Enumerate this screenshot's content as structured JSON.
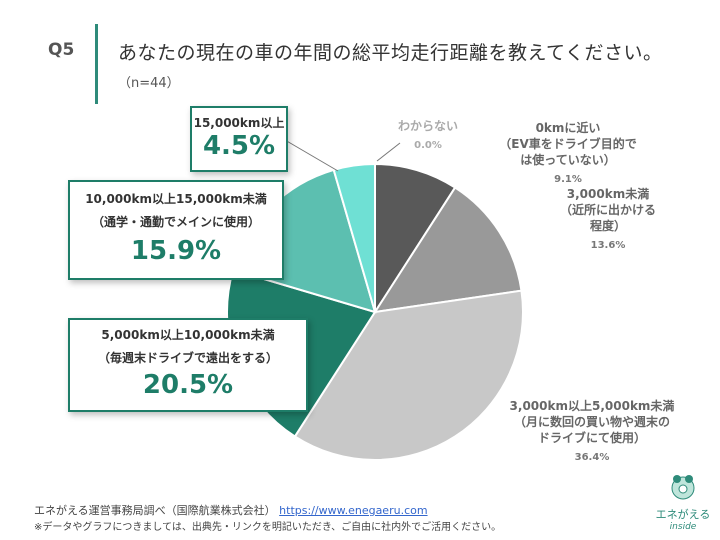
{
  "header": {
    "question_no": "Q5",
    "title": "あなたの現在の車の年間の総平均走行距離を教えてください。",
    "sample": "（n=44）"
  },
  "chart_data": {
    "type": "pie",
    "slices": [
      {
        "label_lines": [
          "0kmに近い",
          "（EV車をドライブ目的で",
          "は使っていない）"
        ],
        "value": 9.1,
        "pct_text": "9.1%",
        "color": "#595959"
      },
      {
        "label_lines": [
          "3,000km未満",
          "（近所に出かける",
          "程度）"
        ],
        "value": 13.6,
        "pct_text": "13.6%",
        "color": "#999999"
      },
      {
        "label_lines": [
          "3,000km以上5,000km未満",
          "（月に数回の買い物や週末の",
          "ドライブにて使用）"
        ],
        "value": 36.4,
        "pct_text": "36.4%",
        "color": "#c8c8c8"
      },
      {
        "label_lines": [
          "5,000km以上10,000km未満",
          "（毎週末ドライブで遠出をする）"
        ],
        "value": 20.5,
        "pct_text": "20.5%",
        "color": "#1e7d68"
      },
      {
        "label_lines": [
          "10,000km以上15,000km未満",
          "（通学・通勤でメインに使用）"
        ],
        "value": 15.9,
        "pct_text": "15.9%",
        "color": "#5cbfb0"
      },
      {
        "label_lines": [
          "15,000km以上"
        ],
        "value": 4.5,
        "pct_text": "4.5%",
        "color": "#6fe0d4"
      },
      {
        "label_lines": [
          "わからない"
        ],
        "value": 0.0,
        "pct_text": "0.0%",
        "color": "#dddddd"
      }
    ]
  },
  "footer": {
    "source_text": "エネがえる運営事務局調べ（国際航業株式会社）",
    "source_url": "https://www.enegaeru.com",
    "note": "※データやグラフにつきましては、出典先・リンクを明記いただき、ご自由に社内外でご活用ください。"
  },
  "logo": {
    "name": "エネがえる",
    "sub": "inside"
  }
}
